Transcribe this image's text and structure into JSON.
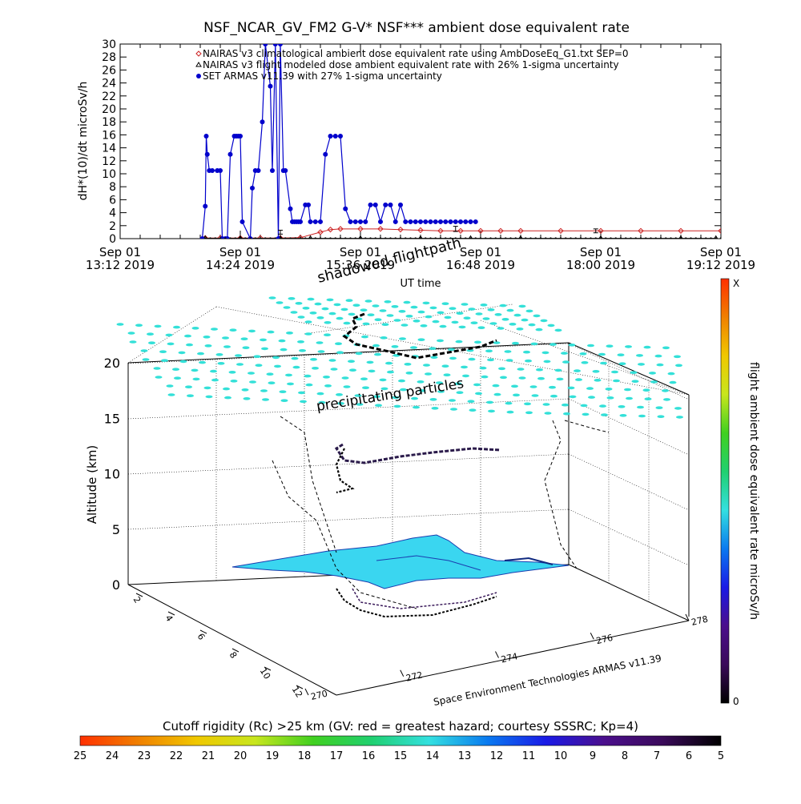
{
  "colors": {
    "nairas_clim": "#cc2222",
    "nairas_flight": "#000000",
    "armas": "#0000cc",
    "precip": "#33e0d8",
    "ground": "#3ad6f0",
    "colorbar_stops": [
      "#000000",
      "#3a0a5a",
      "#4b0f8c",
      "#1a1ae6",
      "#0a7af0",
      "#33e0e0",
      "#20d070",
      "#40d020",
      "#c8e61e",
      "#f0c800",
      "#f08000",
      "#ff3000"
    ]
  },
  "chart_data": [
    {
      "type": "line",
      "title": "NSF_NCAR_GV_FM2 G-V* NSF*** ambient dose equivalent rate",
      "xlabel": "UT time",
      "ylabel": "dH*(10)/dt microSv/h",
      "xlim": [
        0,
        6
      ],
      "ylim": [
        0,
        30
      ],
      "y_ticks": [
        "0",
        "2",
        "4",
        "6",
        "8",
        "10",
        "12",
        "14",
        "16",
        "18",
        "20",
        "22",
        "24",
        "26",
        "28",
        "30"
      ],
      "x_ticks": [
        {
          "v": 0,
          "line1": "Sep 01",
          "line2": "13:12 2019"
        },
        {
          "v": 1.2,
          "line1": "Sep 01",
          "line2": "14:24 2019"
        },
        {
          "v": 2.4,
          "line1": "Sep 01",
          "line2": "15:36 2019"
        },
        {
          "v": 3.6,
          "line1": "Sep 01",
          "line2": "16:48 2019"
        },
        {
          "v": 4.8,
          "line1": "Sep 01",
          "line2": "18:00 2019"
        },
        {
          "v": 6.0,
          "line1": "Sep 01",
          "line2": "19:12 2019"
        }
      ],
      "legend": [
        {
          "symbol": "diamond",
          "text": "NAIRAS v3 climatological ambient dose equivalent rate using AmbDoseEq_G1.txt SEP=0"
        },
        {
          "symbol": "triangle",
          "text": "NAIRAS v3 flight modeled dose ambient equivalent rate with 26% 1-sigma uncertainty"
        },
        {
          "symbol": "dot",
          "text": "SET ARMAS v11.39 with 27% 1-sigma uncertainty"
        }
      ],
      "series": [
        {
          "name": "NAIRAS v3 climatological ambient dose equivalent rate using AmbDoseEq_G1.txt SEP=0",
          "x": [
            0.85,
            1.0,
            1.2,
            1.4,
            1.6,
            1.8,
            2.0,
            2.1,
            2.2,
            2.4,
            2.6,
            2.8,
            3.0,
            3.2,
            3.4,
            3.6,
            3.8,
            4.0,
            4.4,
            4.8,
            5.2,
            5.6,
            6.0
          ],
          "y": [
            0.1,
            0.1,
            0.1,
            0.1,
            0.1,
            0.15,
            1.0,
            1.4,
            1.5,
            1.5,
            1.5,
            1.4,
            1.3,
            1.2,
            1.2,
            1.2,
            1.2,
            1.2,
            1.2,
            1.2,
            1.2,
            1.2,
            1.2
          ]
        },
        {
          "name": "NAIRAS v3 flight modeled dose ambient equivalent rate with 26% 1-sigma uncertainty",
          "x": [
            0.85,
            1.2,
            1.6,
            1.9,
            2.4,
            3.0,
            3.5,
            4.0,
            4.8,
            5.6,
            5.95
          ],
          "y": [
            0.05,
            0.05,
            0.05,
            0.05,
            0.05,
            0.05,
            0.05,
            0.05,
            0.05,
            0.05,
            0.05
          ]
        },
        {
          "name": "SET ARMAS v11.39 with 27% 1-sigma uncertainty",
          "x": [
            0.82,
            0.85,
            0.86,
            0.87,
            0.89,
            0.92,
            0.97,
            1.0,
            1.02,
            1.05,
            1.07,
            1.1,
            1.14,
            1.16,
            1.18,
            1.2,
            1.22,
            1.3,
            1.32,
            1.35,
            1.38,
            1.42,
            1.45,
            1.5,
            1.52,
            1.55,
            1.58,
            1.6,
            1.63,
            1.65,
            1.7,
            1.72,
            1.74,
            1.76,
            1.78,
            1.8,
            1.85,
            1.88,
            1.9,
            1.95,
            2.0,
            2.05,
            2.1,
            2.15,
            2.2,
            2.25,
            2.3,
            2.35,
            2.4,
            2.45,
            2.5,
            2.55,
            2.6,
            2.65,
            2.7,
            2.75,
            2.8,
            2.85,
            2.9,
            2.95,
            3.0,
            3.05,
            3.1,
            3.15,
            3.2,
            3.25,
            3.3,
            3.35,
            3.4,
            3.45,
            3.5,
            3.55
          ],
          "y": [
            0,
            5,
            15.8,
            13,
            10.5,
            10.5,
            10.5,
            10.5,
            0,
            0,
            0,
            13,
            15.8,
            15.8,
            15.8,
            15.8,
            2.6,
            0,
            7.8,
            10.5,
            10.5,
            18,
            30,
            23.5,
            10.5,
            30,
            0,
            30,
            10.5,
            10.5,
            4.6,
            2.6,
            2.6,
            2.6,
            2.6,
            2.6,
            5.2,
            5.2,
            2.6,
            2.6,
            2.6,
            13,
            15.8,
            15.8,
            15.8,
            4.6,
            2.6,
            2.6,
            2.6,
            2.6,
            5.2,
            5.2,
            2.6,
            5.2,
            5.2,
            2.6,
            5.2,
            2.6,
            2.6,
            2.6,
            2.6,
            2.6,
            2.6,
            2.6,
            2.6,
            2.6,
            2.6,
            2.6,
            2.6,
            2.6,
            2.6,
            2.6
          ]
        }
      ],
      "error_bars": [
        {
          "x": 1.6,
          "y": 1.0,
          "err": 0.3
        },
        {
          "x": 3.35,
          "y": 1.5,
          "err": 0.4
        },
        {
          "x": 4.75,
          "y": 1.2,
          "err": 0.3
        }
      ]
    },
    {
      "type": "scatter",
      "title": "",
      "zlabel": "Altitude (km)",
      "z_ticks": [
        "0",
        "5",
        "10",
        "15",
        "20"
      ],
      "x_ticks": [
        "270",
        "272",
        "274",
        "276",
        "278"
      ],
      "y_ticks": [
        "2",
        "4",
        "6",
        "8",
        "10",
        "12"
      ],
      "labels": {
        "shadowed": "shadowed flightpath",
        "precip": "precipitating particles",
        "credit": "Space Environment Technologies ARMAS v11.39"
      },
      "right_colorbar": {
        "label": "flight ambient dose equivalent rate microSv/h",
        "top": "X",
        "bottom": "0"
      },
      "bottom_colorbar": {
        "label": "Cutoff rigidity (Rc) >25 km (GV: red = greatest hazard; courtesy SSSRC; Kp=4)",
        "ticks": [
          "25",
          "24",
          "23",
          "22",
          "21",
          "20",
          "19",
          "18",
          "17",
          "16",
          "15",
          "14",
          "13",
          "12",
          "11",
          "10",
          "9",
          "8",
          "7",
          "6",
          "5"
        ]
      }
    }
  ]
}
